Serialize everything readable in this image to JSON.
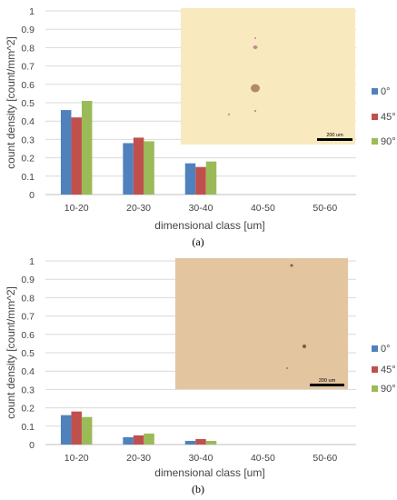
{
  "chart_data": [
    {
      "type": "bar",
      "categories": [
        "10-20",
        "20-30",
        "30-40",
        "40-50",
        "50-60"
      ],
      "series": [
        {
          "name": "0°",
          "color": "#4f81bd",
          "values": [
            0.46,
            0.28,
            0.17,
            0,
            0
          ]
        },
        {
          "name": "45°",
          "color": "#c0504d",
          "values": [
            0.42,
            0.31,
            0.15,
            0,
            0
          ]
        },
        {
          "name": "90°",
          "color": "#9bbb59",
          "values": [
            0.51,
            0.29,
            0.18,
            0,
            0
          ]
        }
      ],
      "xlabel": "dimensional class [um]",
      "ylabel": "count density [count/mm^2]",
      "ylim": [
        0,
        1
      ],
      "yticks": [
        "0",
        "0.1",
        "0.2",
        "0.3",
        "0.4",
        "0.5",
        "0.6",
        "0.7",
        "0.8",
        "0.9",
        "1"
      ],
      "grid": true,
      "legend_position": "right",
      "caption": "(a)",
      "inset": {
        "label": "200 um",
        "background": "#f8e9be"
      }
    },
    {
      "type": "bar",
      "categories": [
        "10-20",
        "20-30",
        "30-40",
        "40-50",
        "50-60"
      ],
      "series": [
        {
          "name": "0°",
          "color": "#4f81bd",
          "values": [
            0.16,
            0.04,
            0.02,
            0,
            0
          ]
        },
        {
          "name": "45°",
          "color": "#c0504d",
          "values": [
            0.18,
            0.05,
            0.03,
            0,
            0
          ]
        },
        {
          "name": "90°",
          "color": "#9bbb59",
          "values": [
            0.15,
            0.06,
            0.02,
            0,
            0
          ]
        }
      ],
      "xlabel": "dimensional class [um]",
      "ylabel": "count density [count/mm^2]",
      "ylim": [
        0,
        1
      ],
      "yticks": [
        "0",
        "0.1",
        "0.2",
        "0.3",
        "0.4",
        "0.5",
        "0.6",
        "0.7",
        "0.8",
        "0.9",
        "1"
      ],
      "grid": true,
      "legend_position": "right",
      "caption": "(b)",
      "inset": {
        "label": "200 um",
        "background": "#e3c5a0"
      }
    }
  ]
}
